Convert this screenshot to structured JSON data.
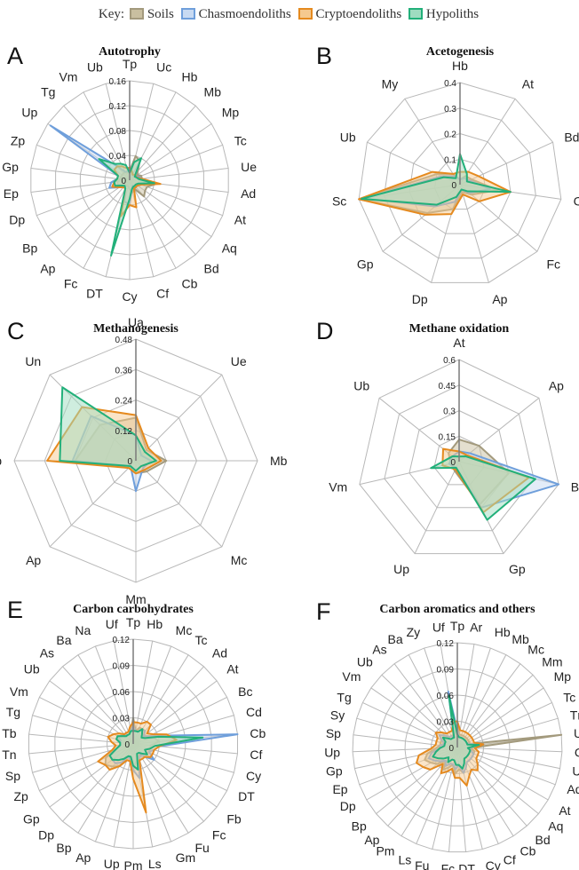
{
  "legend": {
    "key_label": "Key:",
    "items": [
      {
        "name": "Soils",
        "color": "#a39a7d",
        "fill": "#c9bfa0"
      },
      {
        "name": "Chasmoendoliths",
        "color": "#6f9fdb",
        "fill": "#c8daf2"
      },
      {
        "name": "Cryptoendoliths",
        "color": "#e58a1f",
        "fill": "#f5c98f"
      },
      {
        "name": "Hypoliths",
        "color": "#22b07a",
        "fill": "#9fdcc0"
      }
    ]
  },
  "chart_data": [
    {
      "letter": "A",
      "title": "Autotrophy",
      "type": "radar",
      "categories": [
        "Tp",
        "Uc",
        "Hb",
        "Mb",
        "Mp",
        "Tc",
        "Ue",
        "Ad",
        "At",
        "Aq",
        "Bd",
        "Cb",
        "Cf",
        "Cy",
        "DT",
        "Fc",
        "Ap",
        "Bp",
        "Dp",
        "Ep",
        "Gp",
        "Zp",
        "Up",
        "Tg",
        "Vm",
        "Ub"
      ],
      "ticks": [
        0,
        0.04,
        0.08,
        0.12,
        0.16
      ],
      "ylim": [
        0,
        0.16
      ],
      "series": [
        {
          "name": "Soils",
          "values": [
            0.015,
            0.04,
            0.035,
            0.02,
            0.015,
            0.02,
            0.02,
            0.045,
            0.03,
            0.03,
            0.035,
            0.015,
            0.02,
            0.015,
            0.01,
            0.01,
            0.01,
            0.015,
            0.02,
            0.02,
            0.015,
            0.015,
            0.015,
            0.015,
            0.015,
            0.012
          ]
        },
        {
          "name": "Chasmoendoliths",
          "values": [
            0.012,
            0.015,
            0.01,
            0.01,
            0.01,
            0.015,
            0.02,
            0.035,
            0.02,
            0.015,
            0.015,
            0.01,
            0.015,
            0.04,
            0.035,
            0.015,
            0.015,
            0.02,
            0.035,
            0.03,
            0.02,
            0.02,
            0.155,
            0.03,
            0.015,
            0.015
          ]
        },
        {
          "name": "Cryptoendoliths",
          "values": [
            0.02,
            0.015,
            0.01,
            0.012,
            0.012,
            0.012,
            0.02,
            0.05,
            0.02,
            0.015,
            0.015,
            0.015,
            0.045,
            0.04,
            0.06,
            0.015,
            0.015,
            0.02,
            0.03,
            0.025,
            0.02,
            0.02,
            0.03,
            0.03,
            0.025,
            0.02
          ]
        },
        {
          "name": "Hypoliths",
          "values": [
            0.012,
            0.03,
            0.04,
            0.015,
            0.01,
            0.012,
            0.015,
            0.04,
            0.015,
            0.012,
            0.012,
            0.012,
            0.015,
            0.03,
            0.125,
            0.015,
            0.012,
            0.015,
            0.025,
            0.025,
            0.02,
            0.02,
            0.06,
            0.035,
            0.03,
            0.025
          ]
        }
      ]
    },
    {
      "letter": "B",
      "title": "Acetogenesis",
      "type": "radar",
      "categories": [
        "Hb",
        "At",
        "Bd",
        "Cf",
        "Fc",
        "Ap",
        "Dp",
        "Gp",
        "Sc",
        "Ub",
        "My"
      ],
      "ticks": [
        0,
        0.1,
        0.2,
        0.3,
        0.4
      ],
      "ylim": [
        0,
        0.4
      ],
      "series": [
        {
          "name": "Soils",
          "values": [
            0.02,
            0.04,
            0.05,
            0.15,
            0.06,
            0.03,
            0.1,
            0.17,
            0.4,
            0.1,
            0.05
          ]
        },
        {
          "name": "Chasmoendoliths",
          "values": [
            0.02,
            0.03,
            0.04,
            0.12,
            0.05,
            0.02,
            0.07,
            0.13,
            0.38,
            0.08,
            0.04
          ]
        },
        {
          "name": "Cryptoendoliths",
          "values": [
            0.05,
            0.06,
            0.08,
            0.2,
            0.1,
            0.04,
            0.12,
            0.18,
            0.4,
            0.12,
            0.05
          ]
        },
        {
          "name": "Hypoliths",
          "values": [
            0.12,
            0.05,
            0.03,
            0.2,
            0.04,
            0.02,
            0.05,
            0.12,
            0.39,
            0.07,
            0.03
          ]
        }
      ]
    },
    {
      "letter": "C",
      "title": "Methanogenesis",
      "type": "radar",
      "categories": [
        "Ua",
        "Ue",
        "Mb",
        "Mc",
        "Mm",
        "Ap",
        "Ub",
        "Un"
      ],
      "ticks": [
        0,
        0.12,
        0.24,
        0.36,
        0.48
      ],
      "ylim": [
        0,
        0.48
      ],
      "series": [
        {
          "name": "Soils",
          "values": [
            0.17,
            0.06,
            0.12,
            0.06,
            0.05,
            0.04,
            0.24,
            0.2
          ]
        },
        {
          "name": "Chasmoendoliths",
          "values": [
            0.1,
            0.03,
            0.06,
            0.04,
            0.12,
            0.03,
            0.25,
            0.25
          ]
        },
        {
          "name": "Cryptoendoliths",
          "values": [
            0.18,
            0.07,
            0.1,
            0.05,
            0.05,
            0.04,
            0.35,
            0.3
          ]
        },
        {
          "name": "Hypoliths",
          "values": [
            0.1,
            0.05,
            0.08,
            0.03,
            0.04,
            0.03,
            0.3,
            0.41
          ]
        }
      ]
    },
    {
      "letter": "D",
      "title": "Methane oxidation",
      "type": "radar",
      "categories": [
        "At",
        "Ap",
        "Bp",
        "Gp",
        "Up",
        "Vm",
        "Ub"
      ],
      "ticks": [
        0,
        0.15,
        0.3,
        0.45,
        0.6
      ],
      "ylim": [
        0,
        0.6
      ],
      "series": [
        {
          "name": "Soils",
          "values": [
            0.13,
            0.15,
            0.3,
            0.28,
            0.06,
            0.05,
            0.08
          ]
        },
        {
          "name": "Chasmoendoliths",
          "values": [
            0.06,
            0.08,
            0.6,
            0.3,
            0.04,
            0.06,
            0.05
          ]
        },
        {
          "name": "Cryptoendoliths",
          "values": [
            0.06,
            0.06,
            0.42,
            0.33,
            0.05,
            0.1,
            0.12
          ]
        },
        {
          "name": "Hypoliths",
          "values": [
            0.03,
            0.05,
            0.46,
            0.38,
            0.04,
            0.17,
            0.05
          ]
        }
      ]
    },
    {
      "letter": "E",
      "title": "Carbon carbohydrates",
      "type": "radar",
      "categories": [
        "Tp",
        "Hb",
        "Mc",
        "Tc",
        "Ad",
        "At",
        "Bc",
        "Cd",
        "Cb",
        "Cf",
        "Cy",
        "DT",
        "Fb",
        "Fc",
        "Fu",
        "Gm",
        "Ls",
        "Pm",
        "Up",
        "Ap",
        "Bp",
        "Dp",
        "Gp",
        "Zp",
        "Sp",
        "Tn",
        "Tb",
        "Tg",
        "Vm",
        "Ub",
        "As",
        "Ba",
        "Na",
        "Uf"
      ],
      "ticks": [
        0,
        0.03,
        0.06,
        0.09,
        0.12
      ],
      "ylim": [
        0,
        0.12
      ],
      "series": [
        {
          "name": "Soils",
          "values": [
            0.03,
            0.015,
            0.02,
            0.02,
            0.02,
            0.015,
            0.02,
            0.025,
            0.03,
            0.02,
            0.02,
            0.02,
            0.02,
            0.015,
            0.015,
            0.015,
            0.02,
            0.03,
            0.02,
            0.02,
            0.03,
            0.035,
            0.04,
            0.035,
            0.02,
            0.015,
            0.015,
            0.02,
            0.02,
            0.015,
            0.015,
            0.015,
            0.015,
            0.015
          ]
        },
        {
          "name": "Chasmoendoliths",
          "values": [
            0.02,
            0.015,
            0.015,
            0.02,
            0.02,
            0.015,
            0.02,
            0.035,
            0.12,
            0.03,
            0.025,
            0.02,
            0.03,
            0.02,
            0.015,
            0.02,
            0.04,
            0.03,
            0.02,
            0.015,
            0.025,
            0.03,
            0.03,
            0.03,
            0.02,
            0.015,
            0.015,
            0.015,
            0.02,
            0.015,
            0.015,
            0.012,
            0.012,
            0.015
          ]
        },
        {
          "name": "Cryptoendoliths",
          "values": [
            0.025,
            0.025,
            0.025,
            0.03,
            0.03,
            0.02,
            0.025,
            0.04,
            0.05,
            0.03,
            0.025,
            0.025,
            0.025,
            0.02,
            0.02,
            0.02,
            0.08,
            0.04,
            0.02,
            0.02,
            0.03,
            0.04,
            0.04,
            0.045,
            0.025,
            0.02,
            0.025,
            0.03,
            0.025,
            0.02,
            0.015,
            0.015,
            0.015,
            0.02
          ]
        },
        {
          "name": "Hypoliths",
          "values": [
            0.015,
            0.015,
            0.015,
            0.02,
            0.015,
            0.012,
            0.015,
            0.03,
            0.08,
            0.025,
            0.02,
            0.015,
            0.02,
            0.015,
            0.012,
            0.012,
            0.03,
            0.025,
            0.015,
            0.015,
            0.02,
            0.025,
            0.03,
            0.03,
            0.02,
            0.015,
            0.015,
            0.02,
            0.02,
            0.015,
            0.012,
            0.012,
            0.012,
            0.015
          ]
        }
      ]
    },
    {
      "letter": "F",
      "title": "Carbon aromatics and others",
      "type": "radar",
      "categories": [
        "Tp",
        "Ar",
        "Hb",
        "Mb",
        "Mc",
        "Mm",
        "Mp",
        "Tc",
        "Tm",
        "Ue",
        "Cb",
        "Ua",
        "Ad",
        "At",
        "Aq",
        "Bd",
        "Cb",
        "Cf",
        "Cy",
        "DT",
        "Fc",
        "Fu",
        "Ls",
        "Pm",
        "Ap",
        "Bp",
        "Dp",
        "Ep",
        "Gp",
        "Up",
        "Sp",
        "Sy",
        "Tg",
        "Vm",
        "Ub",
        "As",
        "Ba",
        "Zy",
        "Uf"
      ],
      "ticks": [
        0,
        0.03,
        0.06,
        0.09,
        0.12
      ],
      "ylim": [
        0,
        0.12
      ],
      "series": [
        {
          "name": "Soils",
          "values": [
            0.025,
            0.015,
            0.015,
            0.015,
            0.015,
            0.015,
            0.015,
            0.015,
            0.015,
            0.12,
            0.015,
            0.02,
            0.02,
            0.02,
            0.02,
            0.02,
            0.02,
            0.025,
            0.03,
            0.025,
            0.03,
            0.02,
            0.025,
            0.03,
            0.02,
            0.03,
            0.035,
            0.04,
            0.035,
            0.025,
            0.02,
            0.02,
            0.02,
            0.02,
            0.02,
            0.015,
            0.015,
            0.015,
            0.015
          ]
        },
        {
          "name": "Chasmoendoliths",
          "values": [
            0.02,
            0.012,
            0.012,
            0.012,
            0.012,
            0.012,
            0.012,
            0.012,
            0.015,
            0.03,
            0.015,
            0.015,
            0.02,
            0.02,
            0.02,
            0.02,
            0.02,
            0.025,
            0.03,
            0.02,
            0.025,
            0.02,
            0.02,
            0.025,
            0.02,
            0.025,
            0.03,
            0.035,
            0.03,
            0.02,
            0.02,
            0.015,
            0.02,
            0.025,
            0.02,
            0.015,
            0.015,
            0.012,
            0.065
          ]
        },
        {
          "name": "Cryptoendoliths",
          "values": [
            0.03,
            0.02,
            0.02,
            0.02,
            0.02,
            0.02,
            0.02,
            0.02,
            0.02,
            0.03,
            0.02,
            0.025,
            0.025,
            0.025,
            0.03,
            0.035,
            0.03,
            0.035,
            0.045,
            0.035,
            0.035,
            0.025,
            0.03,
            0.035,
            0.025,
            0.04,
            0.045,
            0.05,
            0.045,
            0.03,
            0.025,
            0.025,
            0.025,
            0.03,
            0.025,
            0.02,
            0.02,
            0.02,
            0.03
          ]
        },
        {
          "name": "Hypoliths",
          "values": [
            0.015,
            0.012,
            0.012,
            0.012,
            0.012,
            0.012,
            0.012,
            0.012,
            0.012,
            0.025,
            0.012,
            0.015,
            0.015,
            0.015,
            0.015,
            0.015,
            0.015,
            0.02,
            0.025,
            0.02,
            0.02,
            0.015,
            0.015,
            0.02,
            0.015,
            0.02,
            0.025,
            0.03,
            0.025,
            0.02,
            0.015,
            0.015,
            0.015,
            0.02,
            0.015,
            0.012,
            0.012,
            0.012,
            0.06
          ]
        }
      ]
    }
  ]
}
